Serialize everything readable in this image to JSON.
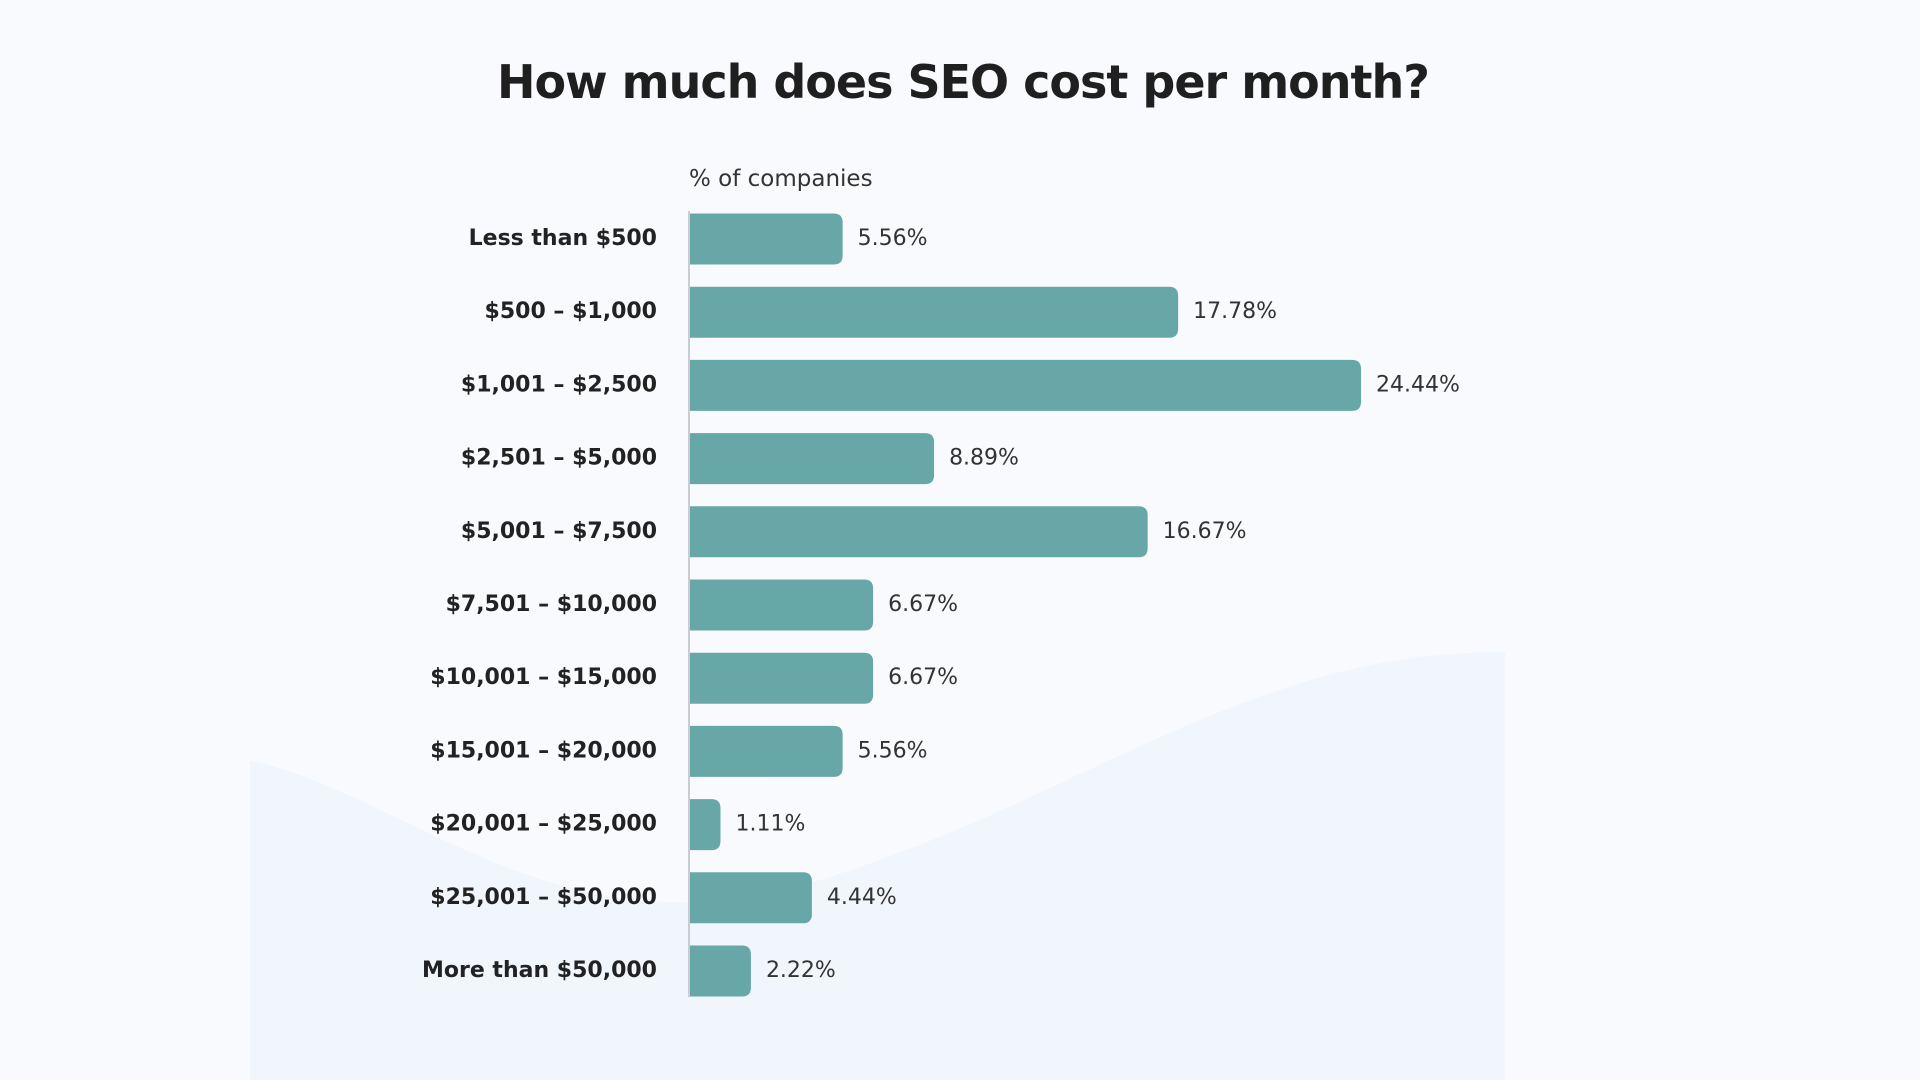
{
  "chart_data": {
    "type": "bar",
    "orientation": "horizontal",
    "title": "How much does SEO cost per month?",
    "x_label": "% of companies",
    "color": "#68a7a7",
    "categories": [
      "Less than $500",
      "$500 – $1,000",
      "$1,001 – $2,500",
      "$2,501 – $5,000",
      "$5,001 – $7,500",
      "$7,501 – $10,000",
      "$10,001 – $15,000",
      "$15,001 – $20,000",
      "$20,001 – $25,000",
      "$25,001 – $50,000",
      "More than $50,000"
    ],
    "values": [
      5.56,
      17.78,
      24.44,
      8.89,
      16.67,
      6.67,
      6.67,
      5.56,
      1.11,
      4.44,
      2.22
    ],
    "value_labels": [
      "5.56%",
      "17.78%",
      "24.44%",
      "8.89%",
      "16.67%",
      "6.67%",
      "6.67%",
      "5.56%",
      "1.11%",
      "4.44%",
      "2.22%"
    ]
  }
}
